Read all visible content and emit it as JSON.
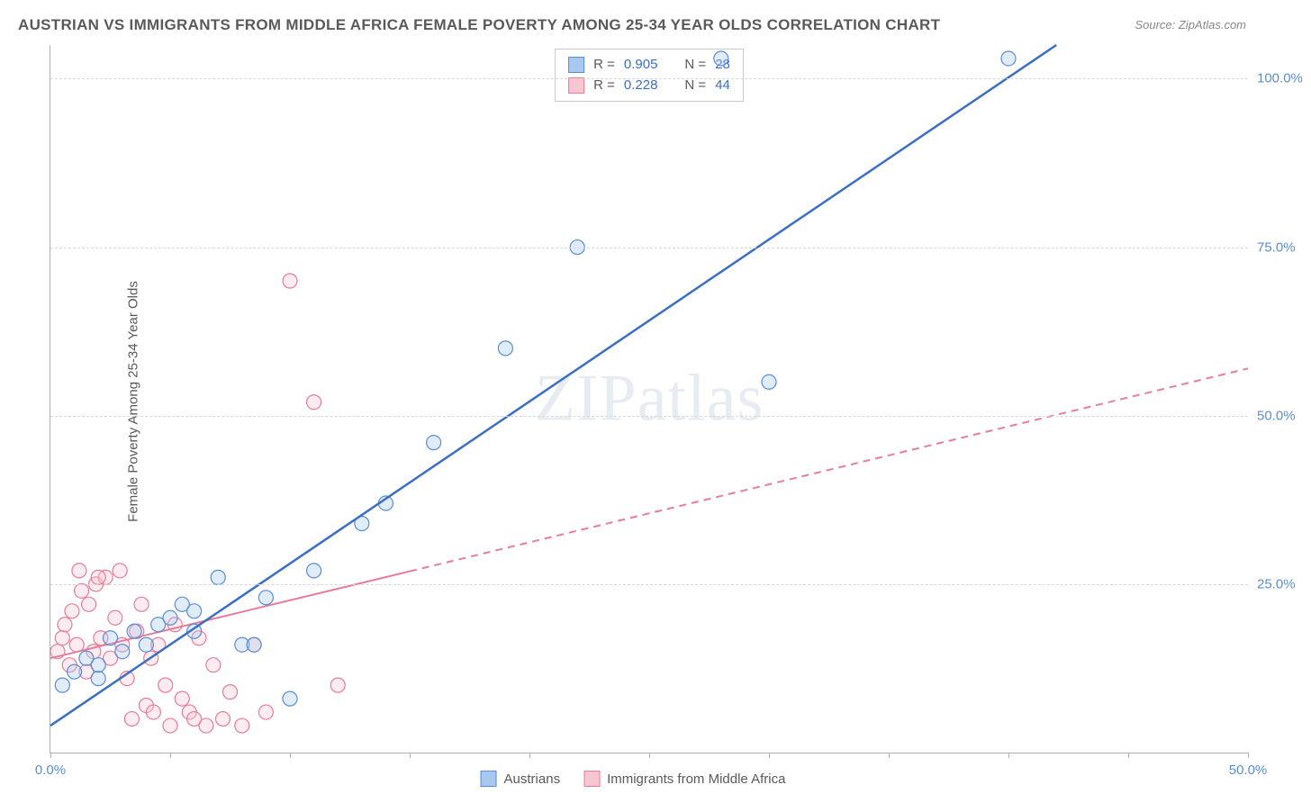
{
  "title": "AUSTRIAN VS IMMIGRANTS FROM MIDDLE AFRICA FEMALE POVERTY AMONG 25-34 YEAR OLDS CORRELATION CHART",
  "source_label": "Source: ZipAtlas.com",
  "ylabel": "Female Poverty Among 25-34 Year Olds",
  "watermark": "ZIPatlas",
  "chart": {
    "type": "scatter",
    "xlim": [
      0,
      50
    ],
    "ylim": [
      0,
      105
    ],
    "xtick_positions": [
      0,
      5,
      10,
      15,
      20,
      25,
      30,
      35,
      40,
      45,
      50
    ],
    "xtick_labels": {
      "0": "0.0%",
      "50": "50.0%"
    },
    "ytick_positions": [
      25,
      50,
      75,
      100
    ],
    "ytick_labels": [
      "25.0%",
      "50.0%",
      "75.0%",
      "100.0%"
    ],
    "grid_color": "#d8d8d8",
    "axis_color": "#b0b0b0",
    "background_color": "#ffffff",
    "tick_label_color": "#5b8dd6",
    "axis_label_color": "#5a5a5a",
    "marker_radius": 8,
    "series": [
      {
        "name": "Austrians",
        "color_fill": "#a9c8ef",
        "color_stroke": "#5b8dd6",
        "R": "0.905",
        "N": "28",
        "trend": {
          "x1": 0,
          "y1": 4,
          "x2": 42,
          "y2": 105,
          "dashed": false,
          "color": "#3b6fc4",
          "width": 2.5
        },
        "points": [
          [
            0.5,
            10
          ],
          [
            1,
            12
          ],
          [
            1.5,
            14
          ],
          [
            2,
            11
          ],
          [
            2.5,
            17
          ],
          [
            3,
            15
          ],
          [
            3.5,
            18
          ],
          [
            4,
            16
          ],
          [
            4.5,
            19
          ],
          [
            5,
            20
          ],
          [
            5.5,
            22
          ],
          [
            6,
            18
          ],
          [
            7,
            26
          ],
          [
            8,
            16
          ],
          [
            8.5,
            16
          ],
          [
            9,
            23
          ],
          [
            10,
            8
          ],
          [
            11,
            27
          ],
          [
            13,
            34
          ],
          [
            14,
            37
          ],
          [
            16,
            46
          ],
          [
            19,
            60
          ],
          [
            22,
            75
          ],
          [
            28,
            103
          ],
          [
            30,
            55
          ],
          [
            40,
            103
          ],
          [
            2,
            13
          ],
          [
            6,
            21
          ]
        ]
      },
      {
        "name": "Immigrants from Middle Africa",
        "color_fill": "#f6c6d2",
        "color_stroke": "#e87d9a",
        "R": "0.228",
        "N": "44",
        "trend": {
          "x1": 0,
          "y1": 14,
          "x2": 50,
          "y2": 57,
          "dashed_split_x": 15,
          "color": "#e87d9a",
          "width": 2
        },
        "points": [
          [
            0.3,
            15
          ],
          [
            0.6,
            19
          ],
          [
            0.8,
            13
          ],
          [
            0.9,
            21
          ],
          [
            1.1,
            16
          ],
          [
            1.3,
            24
          ],
          [
            1.5,
            12
          ],
          [
            1.6,
            22
          ],
          [
            1.9,
            25
          ],
          [
            2.1,
            17
          ],
          [
            2.3,
            26
          ],
          [
            2.5,
            14
          ],
          [
            2.7,
            20
          ],
          [
            2.9,
            27
          ],
          [
            3.2,
            11
          ],
          [
            3.4,
            5
          ],
          [
            3.6,
            18
          ],
          [
            3.8,
            22
          ],
          [
            4.0,
            7
          ],
          [
            4.2,
            14
          ],
          [
            4.5,
            16
          ],
          [
            4.8,
            10
          ],
          [
            5.0,
            4
          ],
          [
            5.2,
            19
          ],
          [
            5.5,
            8
          ],
          [
            5.8,
            6
          ],
          [
            6.2,
            17
          ],
          [
            6.5,
            4
          ],
          [
            6.8,
            13
          ],
          [
            7.2,
            5
          ],
          [
            7.5,
            9
          ],
          [
            8.0,
            4
          ],
          [
            8.5,
            16
          ],
          [
            9.0,
            6
          ],
          [
            10,
            70
          ],
          [
            11,
            52
          ],
          [
            12,
            10
          ],
          [
            1.2,
            27
          ],
          [
            2.0,
            26
          ],
          [
            0.5,
            17
          ],
          [
            1.8,
            15
          ],
          [
            3.0,
            16
          ],
          [
            4.3,
            6
          ],
          [
            6.0,
            5
          ]
        ]
      }
    ]
  },
  "legend_top": [
    {
      "swatch_fill": "#a9c8ef",
      "swatch_stroke": "#5b8dd6",
      "r_label": "R =",
      "r_val": "0.905",
      "n_label": "N =",
      "n_val": "28"
    },
    {
      "swatch_fill": "#f6c6d2",
      "swatch_stroke": "#e87d9a",
      "r_label": "R =",
      "r_val": "0.228",
      "n_label": "N =",
      "n_val": "44"
    }
  ],
  "legend_bottom": [
    {
      "swatch_fill": "#a9c8ef",
      "swatch_stroke": "#5b8dd6",
      "label": "Austrians"
    },
    {
      "swatch_fill": "#f6c6d2",
      "swatch_stroke": "#e87d9a",
      "label": "Immigrants from Middle Africa"
    }
  ]
}
